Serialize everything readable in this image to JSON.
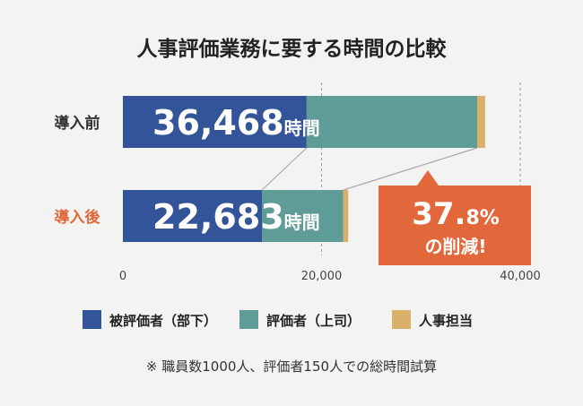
{
  "chart_data": {
    "type": "bar",
    "orientation": "horizontal",
    "stacked": true,
    "title": "人事評価業務に要する時間の比較",
    "categories": [
      "導入前",
      "導入後"
    ],
    "category_colors": [
      "#333333",
      "#e2673a"
    ],
    "series": [
      {
        "name": "被評価者（部下）",
        "color": "#34549a",
        "values": [
          18500,
          14000
        ]
      },
      {
        "name": "評価者（上司）",
        "color": "#5f9c97",
        "values": [
          17168,
          8183
        ]
      },
      {
        "name": "人事担当",
        "color": "#d8b06a",
        "values": [
          800,
          500
        ]
      }
    ],
    "totals": [
      36468,
      22683
    ],
    "total_labels": [
      {
        "number": "36,468",
        "unit": "時間"
      },
      {
        "number": "22,683",
        "unit": "時間"
      }
    ],
    "xlim": [
      0,
      40000
    ],
    "x_ticks": [
      0,
      20000,
      40000
    ],
    "x_tick_labels": [
      "0",
      "20,000",
      "40,000"
    ],
    "grid": "vertical dashed",
    "legend_position": "bottom",
    "callout": {
      "number": "37.",
      "decimal": "8%",
      "text": "の削減!",
      "color": "#e2673a"
    },
    "footnote": "※ 職員数1000人、評価者150人での総時間試算"
  }
}
